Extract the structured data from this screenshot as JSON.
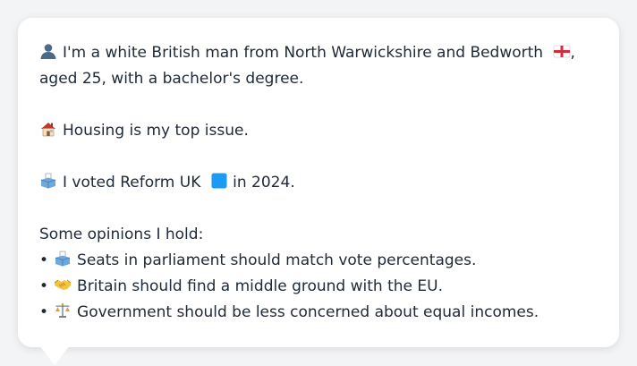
{
  "persona": {
    "intro_before_flag": "I'm a white British man from North Warwickshire and Bedworth",
    "intro_after_flag": ", aged 25, with a bachelor's degree.",
    "top_issue": "Housing is my top issue.",
    "vote_before": "I voted Reform UK",
    "vote_after": " in 2024.",
    "opinions_heading": "Some opinions I hold:",
    "opinions": [
      {
        "icon": "ballot-box-icon",
        "text": "Seats in parliament should match vote percentages."
      },
      {
        "icon": "handshake-icon",
        "text": "Britain should find a middle ground with the EU."
      },
      {
        "icon": "scales-icon",
        "text": "Government should be less concerned about equal incomes."
      }
    ],
    "bullet": "•"
  },
  "colors": {
    "page_bg": "#f3f4f6",
    "card_bg": "#ffffff",
    "text": "#1f2937",
    "reform_blue": "#1d9bf0"
  }
}
